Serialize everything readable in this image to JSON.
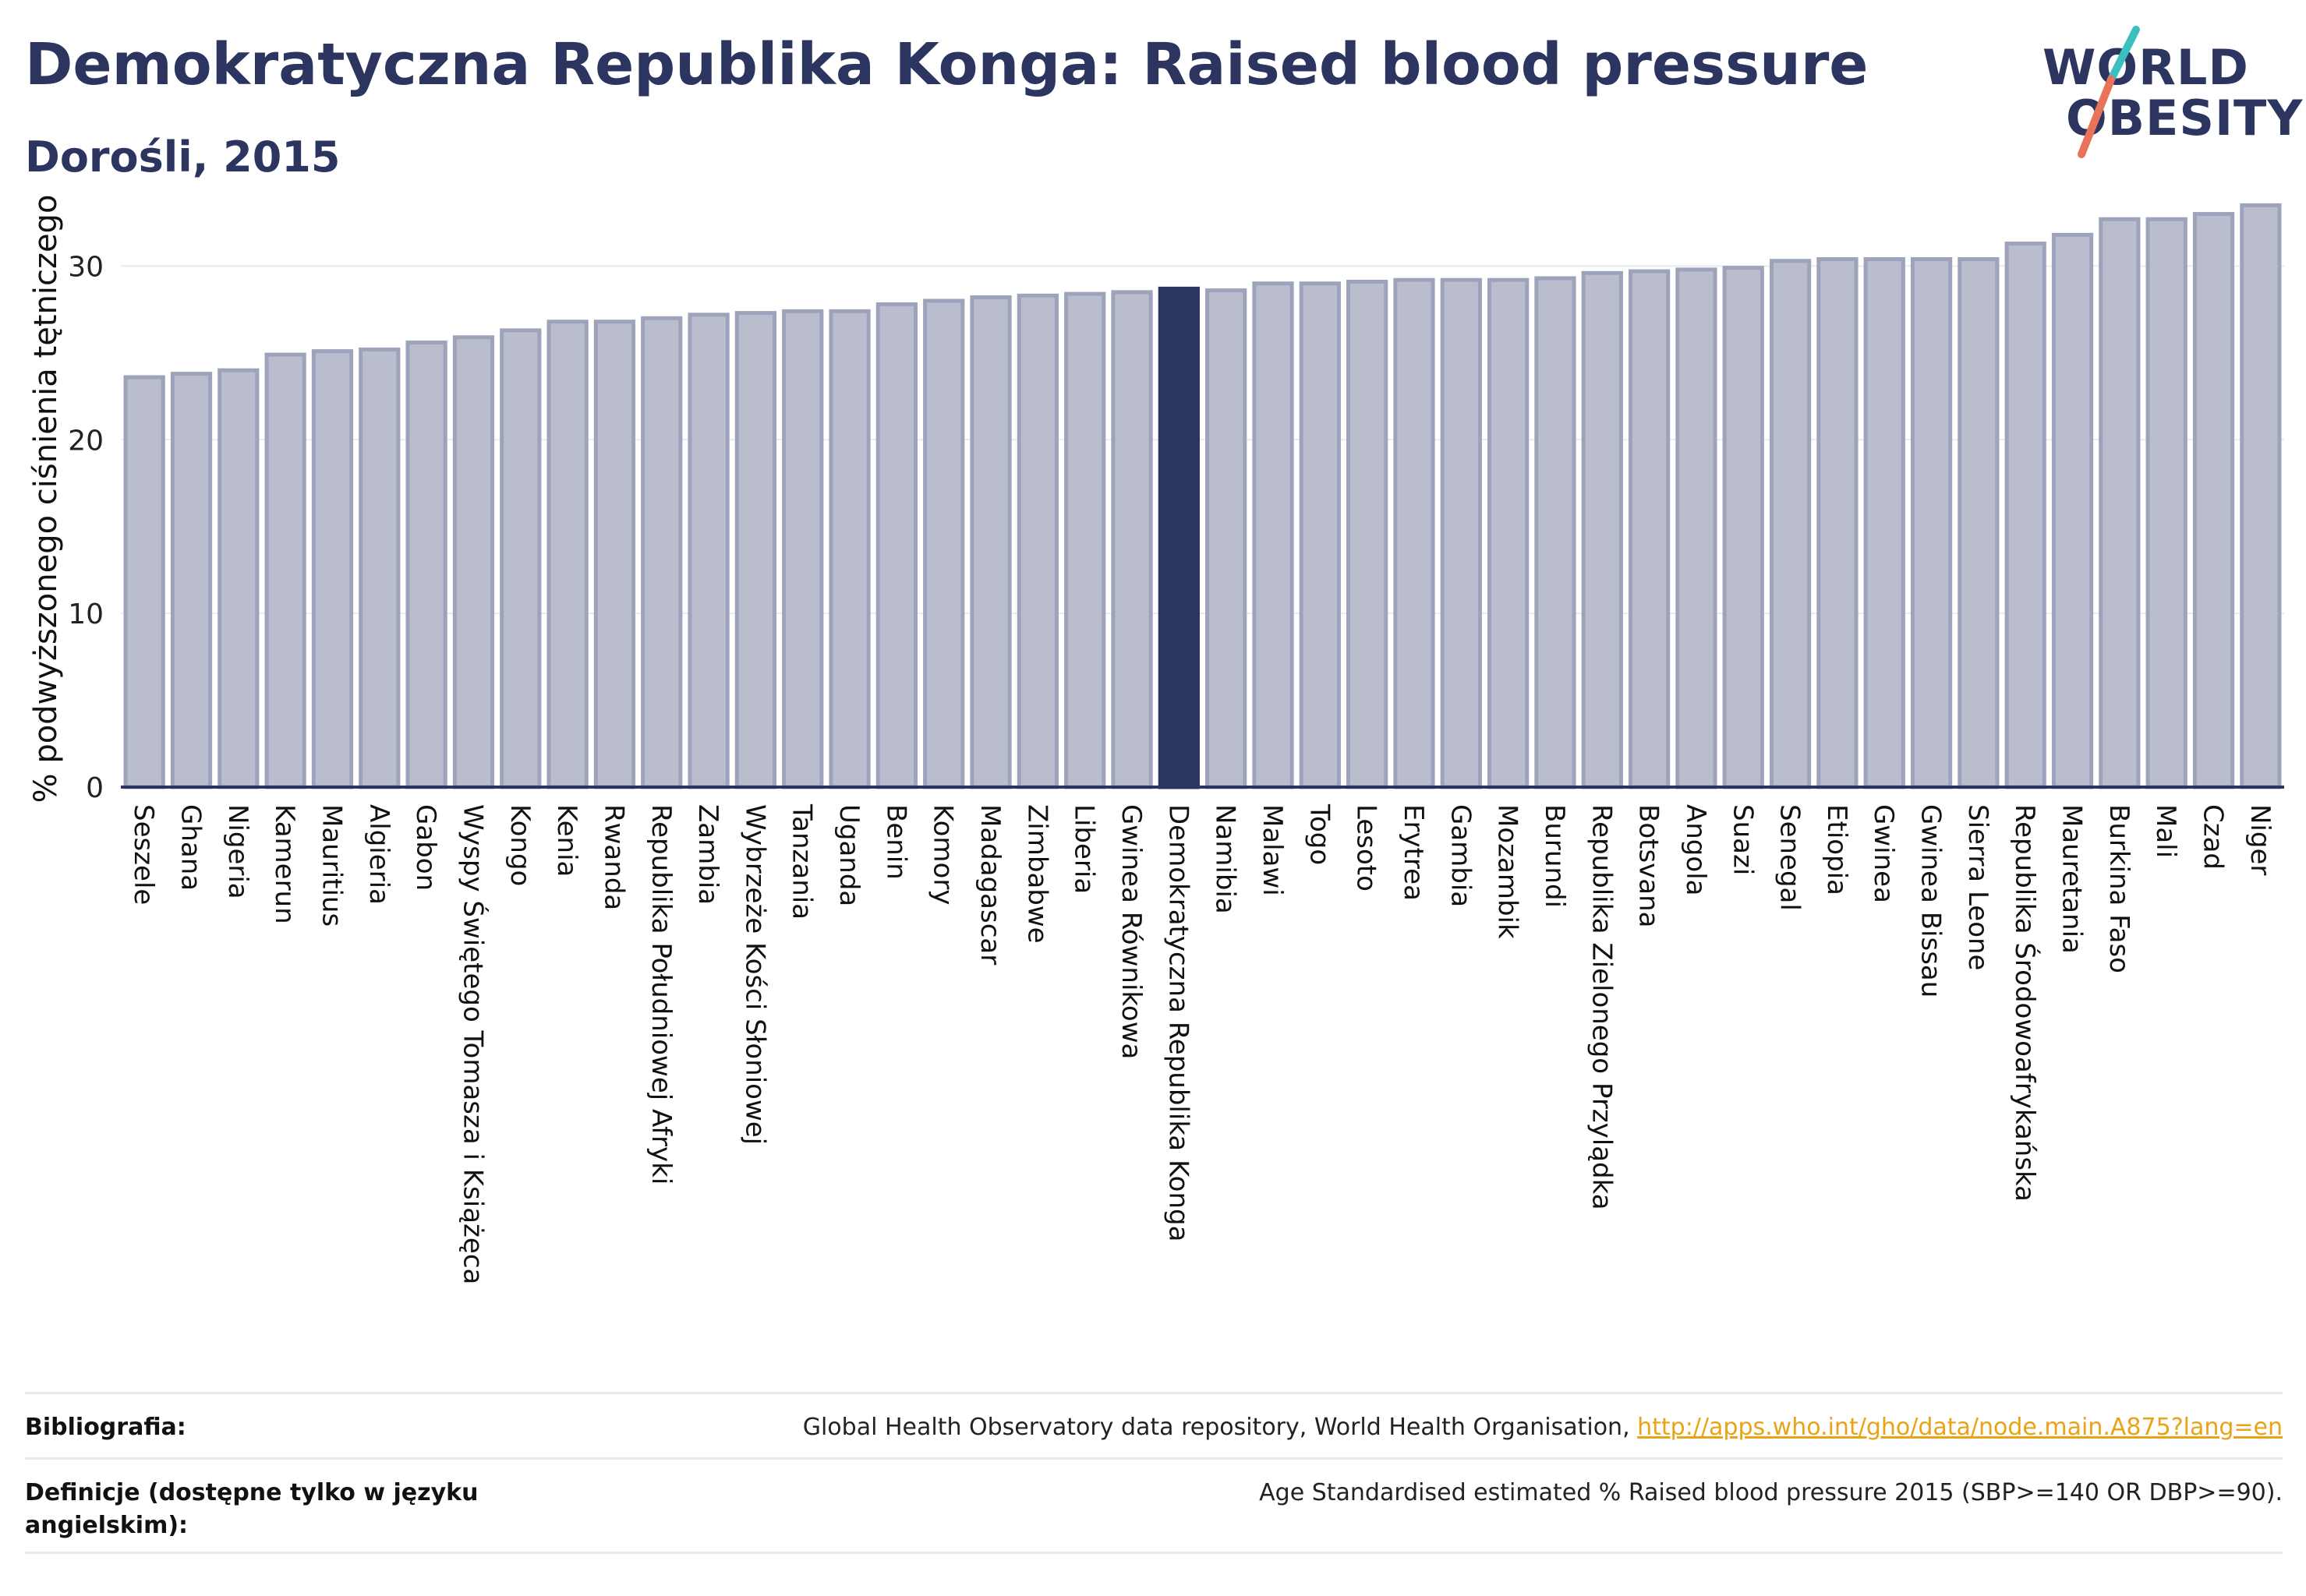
{
  "header": {
    "title": "Demokratyczna Republika Konga: Raised blood pressure",
    "subtitle": "Dorośli, 2015"
  },
  "logo": {
    "line1": "WORLD",
    "line2": "OBESITY",
    "accent_colors": [
      "#3bbfbf",
      "#e8735a"
    ]
  },
  "colors": {
    "bar": "#b9bdcd",
    "bar_border": "#9da3bb",
    "highlight": "#2b3560",
    "grid": "#e9ebf2"
  },
  "chart_data": {
    "type": "bar",
    "ylabel": "% podwyższonego ciśnienia tętniczego",
    "ylim": [
      0,
      35
    ],
    "yticks": [
      0,
      10,
      20,
      30
    ],
    "highlight": "Demokratyczna Republika Konga",
    "grid": true,
    "categories": [
      "Seszele",
      "Ghana",
      "Nigeria",
      "Kamerun",
      "Mauritius",
      "Algieria",
      "Gabon",
      "Wyspy Świętego Tomasza i Książęca",
      "Kongo",
      "Kenia",
      "Rwanda",
      "Republika Południowej Afryki",
      "Zambia",
      "Wybrzeże Kości Słoniowej",
      "Tanzania",
      "Uganda",
      "Benin",
      "Komory",
      "Madagascar",
      "Zimbabwe",
      "Liberia",
      "Gwinea Równikowa",
      "Demokratyczna Republika Konga",
      "Namibia",
      "Malawi",
      "Togo",
      "Lesoto",
      "Erytrea",
      "Gambia",
      "Mozambik",
      "Burundi",
      "Republika Zielonego Przylądka",
      "Botsvana",
      "Angola",
      "Suazi",
      "Senegal",
      "Etiopia",
      "Gwinea",
      "Gwinea Bissau",
      "Sierra Leone",
      "Republika Środowoafrykańska",
      "Mauretania",
      "Burkina Faso",
      "Mali",
      "Czad",
      "Niger"
    ],
    "values": [
      23.6,
      23.8,
      24.0,
      24.9,
      25.1,
      25.2,
      25.6,
      25.9,
      26.3,
      26.8,
      26.8,
      27.0,
      27.2,
      27.3,
      27.4,
      27.4,
      27.8,
      28.0,
      28.2,
      28.3,
      28.4,
      28.5,
      28.7,
      28.6,
      29.0,
      29.0,
      29.1,
      29.2,
      29.2,
      29.2,
      29.3,
      29.6,
      29.7,
      29.8,
      29.9,
      30.3,
      30.4,
      30.4,
      30.4,
      30.4,
      31.3,
      31.8,
      32.7,
      32.7,
      33.0,
      33.5
    ]
  },
  "footer": {
    "bibliography_label": "Bibliografia:",
    "bibliography_text": "Global Health Observatory data repository, World Health Organisation, ",
    "bibliography_link": "http://apps.who.int/gho/data/node.main.A875?lang=en",
    "definition_label": "Definicje (dostępne tylko w języku angielskim):",
    "definition_text": "Age Standardised estimated % Raised blood pressure 2015 (SBP>=140 OR DBP>=90)."
  }
}
